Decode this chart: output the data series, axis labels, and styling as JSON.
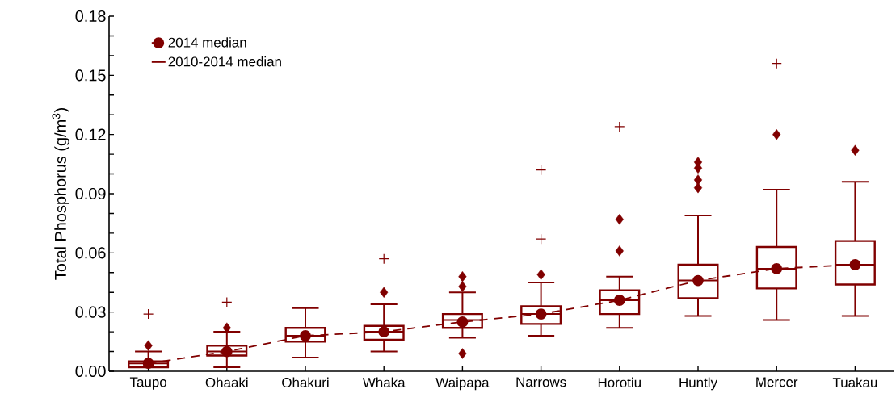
{
  "chart_data": {
    "type": "box",
    "ylabel": "Total Phosphorus (g/m$^{3}$)",
    "categories": [
      "Taupo",
      "Ohaaki",
      "Ohakuri",
      "Whaka",
      "Waipapa",
      "Narrows",
      "Horotiu",
      "Huntly",
      "Mercer",
      "Tuakau"
    ],
    "ylim": [
      0,
      0.18
    ],
    "yticks": [
      {
        "value": 0,
        "label": "0.00"
      },
      {
        "value": 0.01,
        "label": null
      },
      {
        "value": 0.02,
        "label": null
      },
      0.03,
      {
        "value": 0.04,
        "label": null
      },
      {
        "value": 0.05,
        "label": null
      },
      0.06,
      {
        "value": 0.07,
        "label": null
      },
      {
        "value": 0.08,
        "label": null
      },
      0.09,
      {
        "value": 0.1,
        "label": null
      },
      {
        "value": 0.11,
        "label": null
      },
      0.12,
      {
        "value": 0.13,
        "label": null
      },
      {
        "value": 0.14,
        "label": null
      },
      0.15,
      {
        "value": 0.16,
        "label": null
      },
      {
        "value": 0.17,
        "label": null
      },
      0.18
    ],
    "legend": "top left",
    "series": [
      {
        "name": "2014 median",
        "type": "line",
        "color": "#800000",
        "marker": "circle",
        "line_style": "dashed",
        "values": [
          0.004,
          0.01,
          0.018,
          0.02,
          0.025,
          0.029,
          0.036,
          0.046,
          0.052,
          0.054
        ]
      },
      {
        "name": "2010-2014 median",
        "color": "#800000",
        "marker": "diamond",
        "boxes": [
          {
            "low": 0.002,
            "q1": 0.002,
            "median": 0.004,
            "q3": 0.005,
            "high": 0.01,
            "outliers": [
              0.013
            ]
          },
          {
            "low": 0.002,
            "q1": 0.008,
            "median": 0.01,
            "q3": 0.013,
            "high": 0.02,
            "outliers": [
              0.022
            ]
          },
          {
            "low": 0.007,
            "q1": 0.015,
            "median": 0.018,
            "q3": 0.022,
            "high": 0.032
          },
          {
            "low": 0.01,
            "q1": 0.016,
            "median": 0.02,
            "q3": 0.023,
            "high": 0.034,
            "outliers": [
              0.04
            ]
          },
          {
            "low": 0.017,
            "q1": 0.022,
            "median": 0.026,
            "q3": 0.029,
            "high": 0.04,
            "outliers": [
              0.048,
              0.043,
              0.009
            ]
          },
          {
            "low": 0.018,
            "q1": 0.024,
            "median": 0.029,
            "q3": 0.033,
            "high": 0.045,
            "outliers": [
              0.049
            ]
          },
          {
            "low": 0.022,
            "q1": 0.029,
            "median": 0.036,
            "q3": 0.041,
            "high": 0.048,
            "outliers": [
              0.061,
              0.077
            ]
          },
          {
            "low": 0.028,
            "q1": 0.037,
            "median": 0.046,
            "q3": 0.054,
            "high": 0.079,
            "outliers": [
              0.093,
              0.097,
              0.103,
              0.106
            ]
          },
          {
            "low": 0.026,
            "q1": 0.042,
            "median": 0.052,
            "q3": 0.063,
            "high": 0.092,
            "outliers": [
              0.12
            ]
          },
          {
            "low": 0.028,
            "q1": 0.044,
            "median": 0.054,
            "q3": 0.066,
            "high": 0.096,
            "outliers": [
              0.112
            ]
          }
        ]
      },
      {
        "type": "scatter",
        "color": "#800000",
        "marker": "cross",
        "x": [
          "Taupo",
          "Ohaaki",
          "Whaka",
          "Narrows",
          "Narrows",
          "Horotiu",
          "Mercer"
        ],
        "values": [
          0.029,
          0.035,
          0.057,
          0.067,
          0.102,
          0.124,
          0.156
        ]
      }
    ]
  }
}
